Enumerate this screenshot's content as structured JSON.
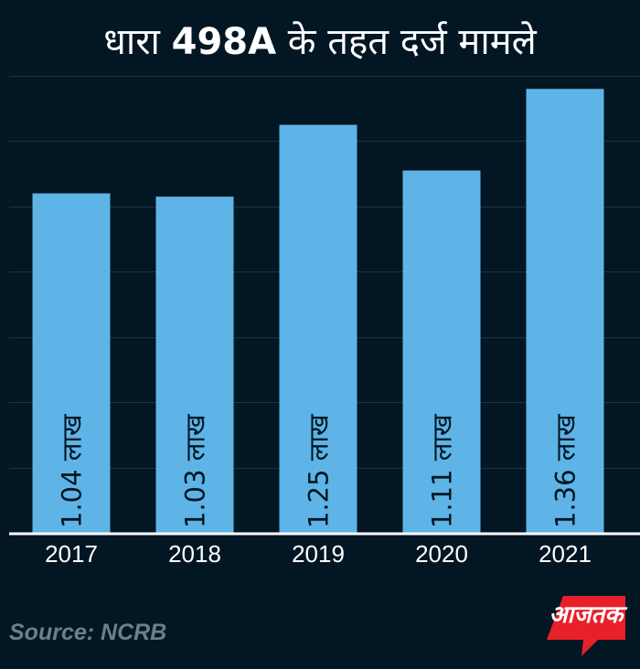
{
  "title": {
    "prefix": "धारा ",
    "bold": "498A",
    "suffix": " के तहत दर्ज मामले"
  },
  "source": "Source: NCRB",
  "logo": {
    "text": "आजतक",
    "color": "#e8202a"
  },
  "colors": {
    "background": "#031623",
    "bar": "#5eb4e6",
    "gridline": "#1d3442",
    "axis": "#ffffff"
  },
  "chart_data": {
    "type": "bar",
    "categories": [
      "2017",
      "2018",
      "2019",
      "2020",
      "2021"
    ],
    "values": [
      1.04,
      1.03,
      1.25,
      1.11,
      1.36
    ],
    "data_labels": [
      "1.04 लाख",
      "1.03 लाख",
      "1.25 लाख",
      "1.11 लाख",
      "1.36 लाख"
    ],
    "title": "धारा 498A के तहत दर्ज मामले",
    "ylim": [
      0,
      1.4
    ],
    "grid": true
  }
}
